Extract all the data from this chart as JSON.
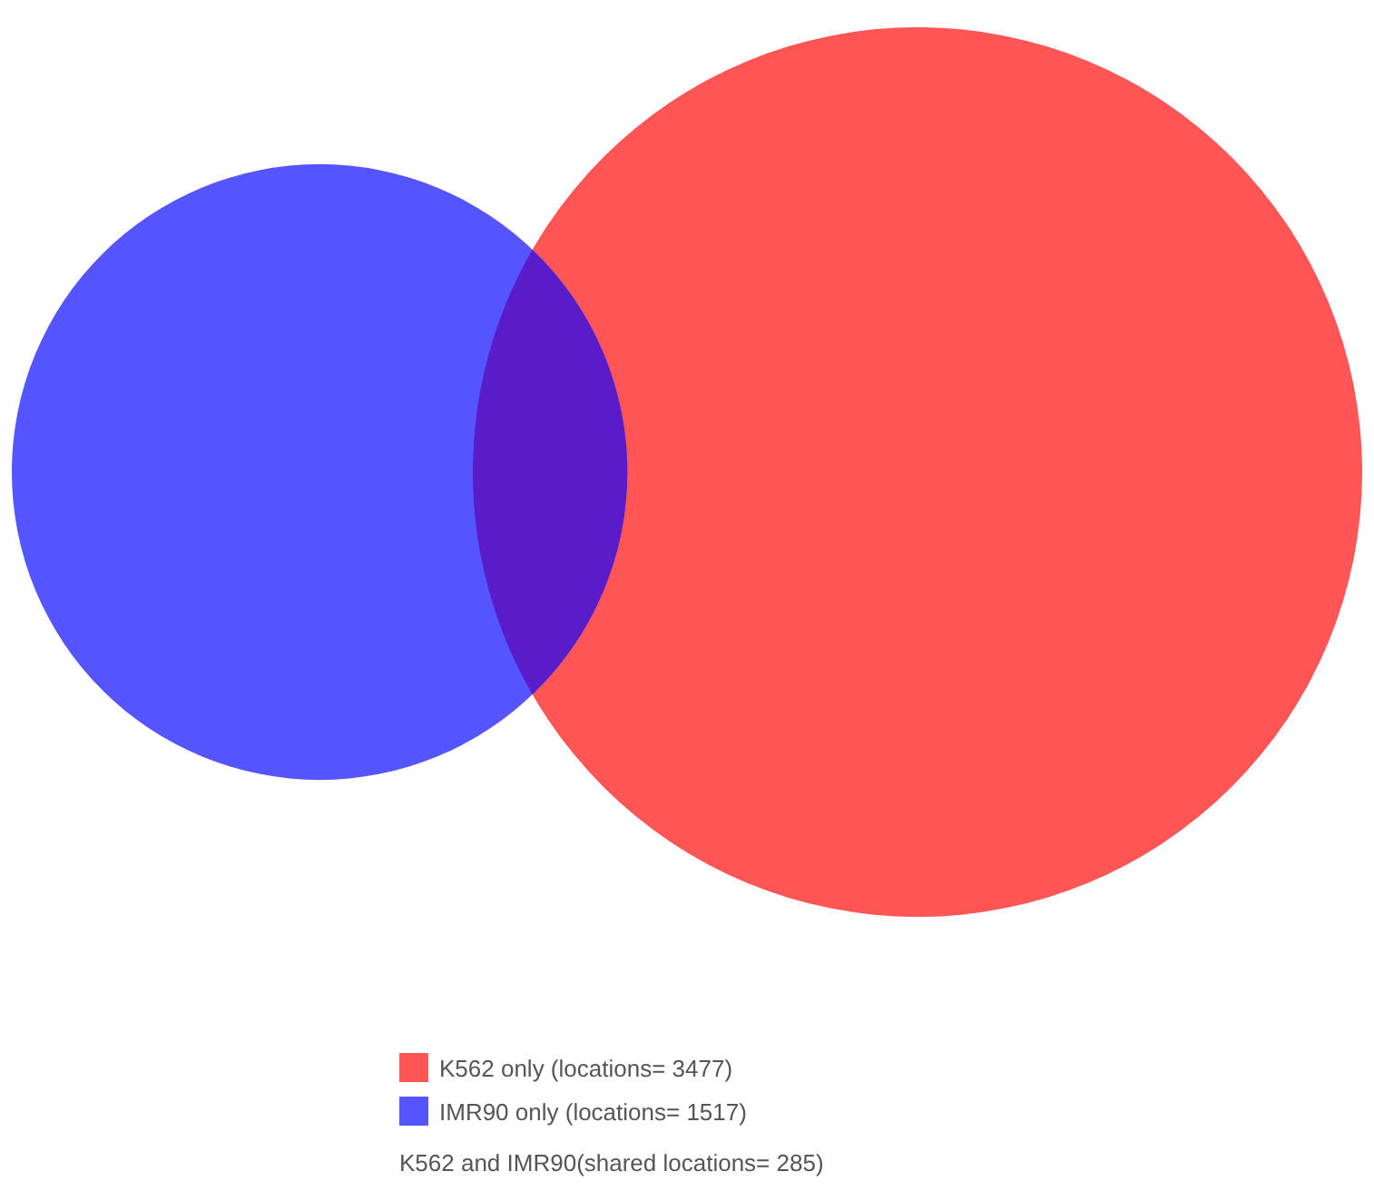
{
  "chart_data": {
    "type": "other",
    "categories": [
      "K562 only (locations= 3477)",
      "IMR90 only (locations= 1517)",
      "K562 and IMR90(shared locations= 285)"
    ],
    "values": [
      3477,
      1517,
      285
    ],
    "data_labels": true,
    "colors": [
      "#ff5555",
      "#5555ff",
      "#5a1bc8"
    ]
  }
}
